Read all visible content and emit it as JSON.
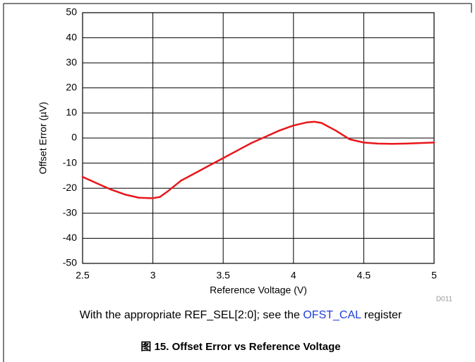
{
  "chart_data": {
    "type": "line",
    "xlabel": "Reference Voltage (V)",
    "ylabel": "Offset Error (µV)",
    "code": "D011",
    "caption": {
      "before": "With the appropriate REF_SEL[2:0]; see the ",
      "link": "OFST_CAL",
      "after": " register"
    },
    "title": "图 15. Offset Error vs Reference Voltage",
    "x": [
      2.5,
      2.6,
      2.7,
      2.8,
      2.9,
      3.0,
      3.05,
      3.1,
      3.2,
      3.3,
      3.4,
      3.5,
      3.6,
      3.7,
      3.8,
      3.9,
      4.0,
      4.1,
      4.15,
      4.2,
      4.3,
      4.4,
      4.5,
      4.6,
      4.7,
      4.8,
      4.9,
      5.0
    ],
    "series": [
      {
        "color": "#e8161b",
        "values": [
          -15.5,
          -18,
          -20.5,
          -22.5,
          -23.8,
          -24,
          -23.5,
          -21.5,
          -17,
          -14,
          -11,
          -8,
          -5,
          -2,
          0.5,
          3,
          5,
          6.3,
          6.5,
          6,
          3,
          -0.5,
          -1.8,
          -2.2,
          -2.3,
          -2.2,
          -2,
          -1.8
        ]
      }
    ],
    "xlim": [
      2.5,
      5
    ],
    "xticks": [
      2.5,
      3,
      3.5,
      4,
      4.5,
      5
    ],
    "ylim": [
      -50,
      50
    ],
    "yticks": [
      -50,
      -40,
      -30,
      -20,
      -10,
      0,
      10,
      20,
      30,
      40,
      50
    ],
    "grid": true
  }
}
